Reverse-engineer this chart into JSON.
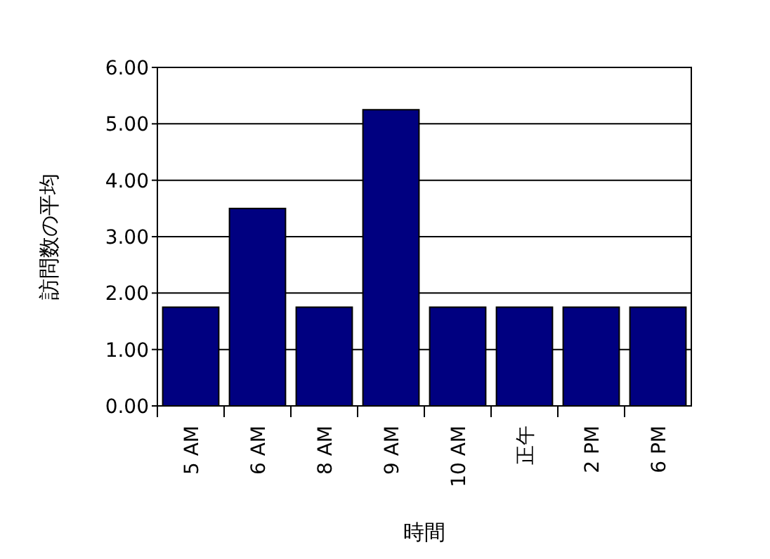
{
  "chart_data": {
    "type": "bar",
    "xlabel": "時間",
    "ylabel": "訪問数の平均",
    "categories": [
      "5 AM",
      "6 AM",
      "8 AM",
      "9 AM",
      "10 AM",
      "正午",
      "2 PM",
      "6 PM"
    ],
    "values": [
      1.75,
      3.5,
      1.75,
      5.25,
      1.75,
      1.75,
      1.75,
      1.75
    ],
    "color": "#000080",
    "ylim": [
      0,
      6
    ],
    "yticks": [
      {
        "value": 0,
        "label": "0.00"
      },
      {
        "value": 1,
        "label": "1.00"
      },
      {
        "value": 2,
        "label": "2.00"
      },
      {
        "value": 3,
        "label": "3.00"
      },
      {
        "value": 4,
        "label": "4.00"
      },
      {
        "value": 5,
        "label": "5.00"
      },
      {
        "value": 6,
        "label": "6.00"
      }
    ],
    "grid": "y"
  }
}
